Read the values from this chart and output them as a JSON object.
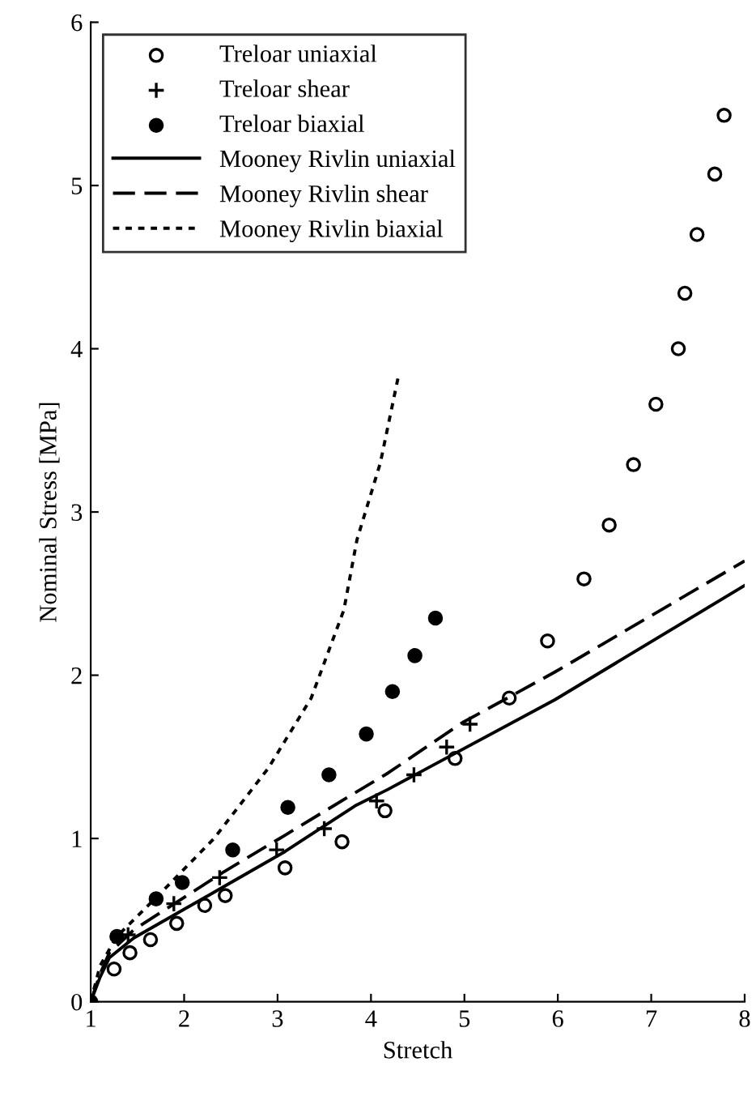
{
  "chart_data": {
    "type": "scatter",
    "xlabel": "Stretch",
    "ylabel": "Nominal Stress [MPa]",
    "xlim": [
      1,
      8
    ],
    "ylim": [
      0,
      6
    ],
    "xticks": [
      1,
      2,
      3,
      4,
      5,
      6,
      7,
      8
    ],
    "yticks": [
      0,
      1,
      2,
      3,
      4,
      5,
      6
    ],
    "grid": false,
    "legend": "top left",
    "series": [
      {
        "name": "Treloar uniaxial",
        "marker": "circle",
        "color": "#000000",
        "x": [
          1.25,
          1.42,
          1.64,
          1.92,
          2.22,
          2.44,
          3.08,
          3.69,
          4.15,
          4.9,
          5.48,
          5.89,
          6.28,
          6.55,
          6.81,
          7.05,
          7.29,
          7.36,
          7.49,
          7.68,
          7.78
        ],
        "values": [
          0.2,
          0.3,
          0.38,
          0.48,
          0.59,
          0.65,
          0.82,
          0.98,
          1.17,
          1.49,
          1.86,
          2.21,
          2.59,
          2.92,
          3.29,
          3.66,
          4.0,
          4.34,
          4.7,
          5.07,
          5.43
        ]
      },
      {
        "name": "Treloar shear",
        "marker": "cross",
        "color": "#000000",
        "x": [
          1.4,
          1.89,
          2.38,
          2.99,
          3.5,
          4.06,
          4.46,
          4.81,
          5.06
        ],
        "values": [
          0.41,
          0.6,
          0.76,
          0.93,
          1.06,
          1.23,
          1.39,
          1.56,
          1.7
        ]
      },
      {
        "name": "Treloar biaxial",
        "marker": "circle",
        "color": "#000000",
        "x": [
          1,
          1.28,
          1.7,
          1.98,
          2.52,
          3.11,
          3.55,
          3.95,
          4.23,
          4.47,
          4.69
        ],
        "values": [
          0,
          0.4,
          0.63,
          0.73,
          0.93,
          1.19,
          1.39,
          1.64,
          1.9,
          2.12,
          2.35
        ]
      },
      {
        "name": "Mooney Rivlin uniaxial",
        "type": "line",
        "line_style": "solid",
        "color": "#000000",
        "x": [
          1,
          1.1,
          1.2,
          1.46,
          2.41,
          3.08,
          3.83,
          4.18,
          5.97,
          8
        ],
        "values": [
          0,
          0.15,
          0.27,
          0.39,
          0.7,
          0.92,
          1.2,
          1.3,
          1.85,
          2.55
        ]
      },
      {
        "name": "Mooney Rivlin shear",
        "type": "line",
        "line_style": "dashed",
        "color": "#000000",
        "x": [
          1,
          1.1,
          1.2,
          1.46,
          2.41,
          3.08,
          3.83,
          4.18,
          4.98,
          5.97,
          8
        ],
        "values": [
          0,
          0.17,
          0.3,
          0.44,
          0.79,
          1.02,
          1.28,
          1.4,
          1.71,
          2.02,
          2.7
        ]
      },
      {
        "name": "Mooney Rivlin biaxial",
        "type": "line",
        "line_style": "dotted",
        "color": "#000000",
        "x": [
          1,
          1.1,
          1.28,
          1.74,
          2.32,
          2.9,
          3.36,
          3.71,
          3.85,
          4.1,
          4.3
        ],
        "values": [
          0,
          0.22,
          0.4,
          0.66,
          1.0,
          1.43,
          1.86,
          2.4,
          2.83,
          3.3,
          3.85
        ]
      }
    ]
  }
}
